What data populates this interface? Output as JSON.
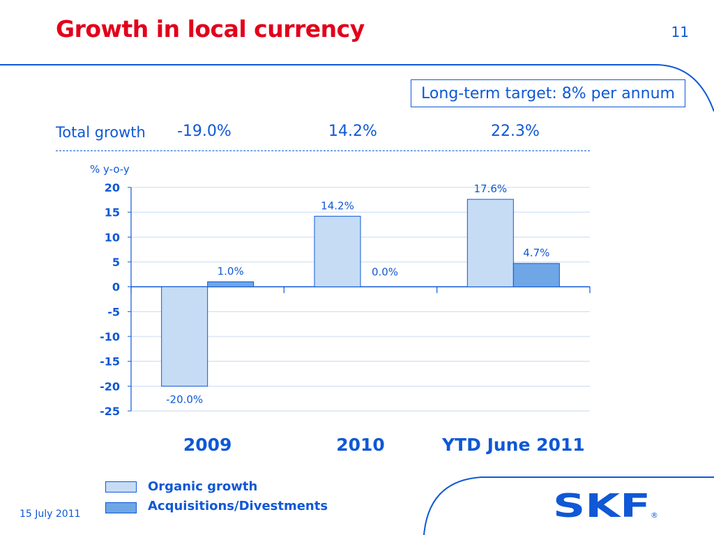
{
  "slide": {
    "title": "Growth in local currency",
    "page_number": "11",
    "target_box": "Long-term target: 8% per annum",
    "total_growth_label": "Total growth",
    "total_growth_values": [
      "-19.0%",
      "14.2%",
      "22.3%"
    ],
    "date": "15 July 2011",
    "logo_text": "SKF",
    "logo_mark": "®"
  },
  "colors": {
    "accent": "#0f58d6",
    "title_red": "#e2001a",
    "organic": "#c6dcf5",
    "acquisitions": "#6ea6e6"
  },
  "chart_data": {
    "type": "bar",
    "ylabel": "% y-o-y",
    "ylim": [
      -25,
      20
    ],
    "yticks": [
      20,
      15,
      10,
      5,
      0,
      -5,
      -10,
      -15,
      -20,
      -25
    ],
    "categories": [
      "2009",
      "2010",
      "YTD June 2011"
    ],
    "series": [
      {
        "name": "Organic growth",
        "values": [
          -20.0,
          14.2,
          17.6
        ],
        "labels": [
          "-20.0%",
          "14.2%",
          "17.6%"
        ],
        "color": "#c6dcf5"
      },
      {
        "name": "Acquisitions/Divestments",
        "values": [
          1.0,
          0.0,
          4.7
        ],
        "labels": [
          "1.0%",
          "0.0%",
          "4.7%"
        ],
        "color": "#6ea6e6"
      }
    ],
    "grid": true,
    "legend": "bottom-left"
  }
}
